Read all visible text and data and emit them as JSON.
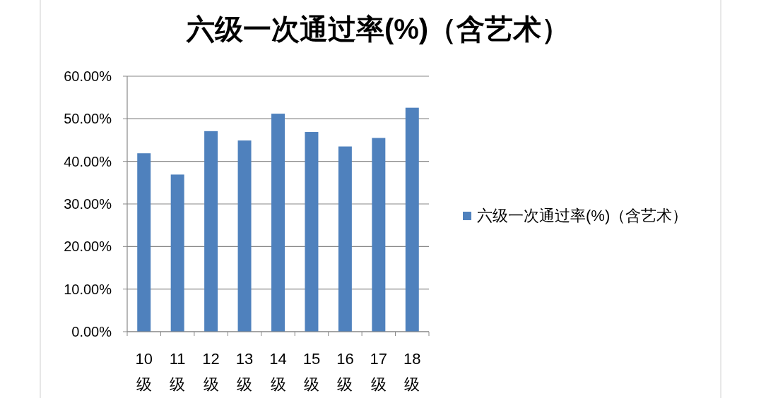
{
  "chart_data": {
    "type": "bar",
    "title": "六级一次通过率(%)（含艺术）",
    "categories": [
      "10\n级",
      "11\n级",
      "12\n级",
      "13\n级",
      "14\n级",
      "15\n级",
      "16\n级",
      "17\n级",
      "18\n级"
    ],
    "series": [
      {
        "name": "六级一次通过率(%)（含艺术）",
        "color": "#4f81bd",
        "values": [
          41.9,
          36.9,
          47.1,
          44.9,
          51.2,
          46.9,
          43.5,
          45.5,
          52.6
        ]
      }
    ],
    "ylim": [
      0,
      60
    ],
    "yticks": [
      {
        "value": 0,
        "label": "0.00%"
      },
      {
        "value": 10,
        "label": "10.00%"
      },
      {
        "value": 20,
        "label": "20.00%"
      },
      {
        "value": 30,
        "label": "30.00%"
      },
      {
        "value": 40,
        "label": "40.00%"
      },
      {
        "value": 50,
        "label": "50.00%"
      },
      {
        "value": 60,
        "label": "60.00%"
      }
    ],
    "grid": "y",
    "legend": "right"
  }
}
